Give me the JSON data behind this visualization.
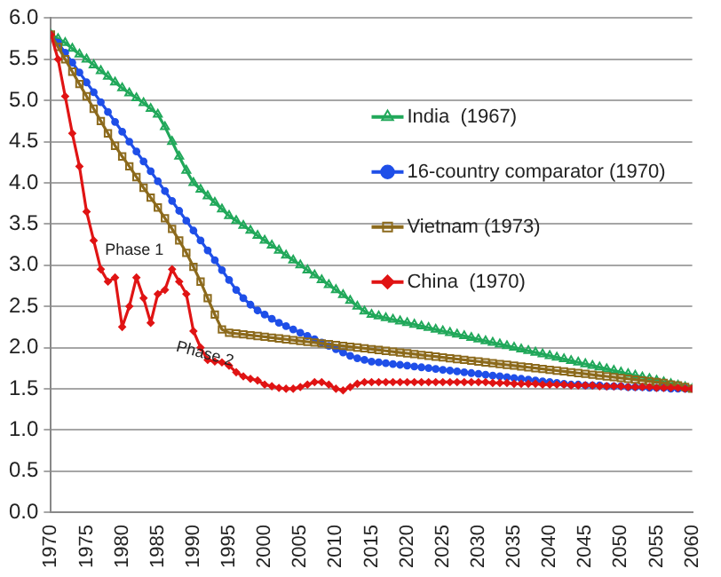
{
  "chart_data": {
    "type": "line",
    "x": [
      1970,
      1971,
      1972,
      1973,
      1974,
      1975,
      1976,
      1977,
      1978,
      1979,
      1980,
      1981,
      1982,
      1983,
      1984,
      1985,
      1986,
      1987,
      1988,
      1989,
      1990,
      1991,
      1992,
      1993,
      1994,
      1995,
      1996,
      1997,
      1998,
      1999,
      2000,
      2001,
      2002,
      2003,
      2004,
      2005,
      2006,
      2007,
      2008,
      2009,
      2010,
      2011,
      2012,
      2013,
      2014,
      2015,
      2016,
      2017,
      2018,
      2019,
      2020,
      2021,
      2022,
      2023,
      2024,
      2025,
      2026,
      2027,
      2028,
      2029,
      2030,
      2031,
      2032,
      2033,
      2034,
      2035,
      2036,
      2037,
      2038,
      2039,
      2040,
      2041,
      2042,
      2043,
      2044,
      2045,
      2046,
      2047,
      2048,
      2049,
      2050,
      2051,
      2052,
      2053,
      2054,
      2055,
      2056,
      2057,
      2058,
      2059,
      2060
    ],
    "series": [
      {
        "name": "India  (1967)",
        "color": "#21a85a",
        "marker": "triangle",
        "values": [
          5.8,
          5.75,
          5.7,
          5.63,
          5.56,
          5.5,
          5.43,
          5.36,
          5.29,
          5.22,
          5.15,
          5.09,
          5.03,
          4.97,
          4.9,
          4.83,
          4.68,
          4.5,
          4.32,
          4.15,
          4.0,
          3.92,
          3.84,
          3.76,
          3.68,
          3.6,
          3.54,
          3.48,
          3.42,
          3.36,
          3.3,
          3.24,
          3.18,
          3.12,
          3.06,
          3.0,
          2.94,
          2.88,
          2.82,
          2.76,
          2.7,
          2.64,
          2.57,
          2.5,
          2.44,
          2.4,
          2.38,
          2.36,
          2.34,
          2.32,
          2.3,
          2.28,
          2.26,
          2.24,
          2.22,
          2.2,
          2.18,
          2.16,
          2.14,
          2.12,
          2.1,
          2.08,
          2.06,
          2.04,
          2.02,
          2.0,
          1.98,
          1.96,
          1.94,
          1.92,
          1.9,
          1.88,
          1.86,
          1.84,
          1.82,
          1.8,
          1.78,
          1.76,
          1.74,
          1.72,
          1.7,
          1.68,
          1.66,
          1.64,
          1.62,
          1.6,
          1.58,
          1.56,
          1.54,
          1.52,
          1.5
        ]
      },
      {
        "name": "16-country comparator (1970)",
        "color": "#1f4fe8",
        "marker": "circle",
        "values": [
          5.8,
          5.7,
          5.58,
          5.46,
          5.34,
          5.22,
          5.1,
          4.98,
          4.86,
          4.74,
          4.62,
          4.5,
          4.38,
          4.26,
          4.14,
          4.02,
          3.9,
          3.78,
          3.66,
          3.54,
          3.42,
          3.3,
          3.18,
          3.06,
          2.94,
          2.82,
          2.7,
          2.6,
          2.52,
          2.45,
          2.4,
          2.35,
          2.3,
          2.26,
          2.22,
          2.18,
          2.14,
          2.1,
          2.06,
          2.02,
          1.98,
          1.94,
          1.9,
          1.87,
          1.85,
          1.83,
          1.82,
          1.81,
          1.8,
          1.79,
          1.78,
          1.77,
          1.76,
          1.75,
          1.74,
          1.73,
          1.72,
          1.71,
          1.7,
          1.69,
          1.68,
          1.67,
          1.66,
          1.65,
          1.64,
          1.63,
          1.62,
          1.61,
          1.6,
          1.59,
          1.58,
          1.57,
          1.56,
          1.55,
          1.55,
          1.54,
          1.54,
          1.54,
          1.53,
          1.53,
          1.53,
          1.52,
          1.52,
          1.52,
          1.51,
          1.51,
          1.51,
          1.5,
          1.5,
          1.5,
          1.5
        ]
      },
      {
        "name": "Vietnam (1973)",
        "color": "#8c6a1c",
        "marker": "square",
        "values": [
          5.8,
          5.65,
          5.5,
          5.35,
          5.2,
          5.05,
          4.9,
          4.75,
          4.6,
          4.45,
          4.32,
          4.2,
          4.07,
          3.94,
          3.82,
          3.7,
          3.57,
          3.44,
          3.3,
          3.15,
          2.98,
          2.8,
          2.6,
          2.4,
          2.22,
          2.18,
          2.17,
          2.16,
          2.15,
          2.14,
          2.13,
          2.12,
          2.11,
          2.1,
          2.09,
          2.08,
          2.07,
          2.06,
          2.05,
          2.04,
          2.03,
          2.02,
          2.01,
          2.0,
          1.99,
          1.98,
          1.97,
          1.96,
          1.95,
          1.94,
          1.93,
          1.92,
          1.91,
          1.9,
          1.89,
          1.88,
          1.87,
          1.86,
          1.85,
          1.84,
          1.83,
          1.82,
          1.81,
          1.8,
          1.79,
          1.78,
          1.77,
          1.76,
          1.75,
          1.74,
          1.73,
          1.72,
          1.71,
          1.7,
          1.69,
          1.68,
          1.67,
          1.66,
          1.65,
          1.64,
          1.63,
          1.62,
          1.61,
          1.6,
          1.59,
          1.58,
          1.57,
          1.55,
          1.54,
          1.52,
          1.5
        ]
      },
      {
        "name": "China  (1970)",
        "color": "#e01414",
        "marker": "diamond",
        "values": [
          5.8,
          5.5,
          5.05,
          4.6,
          4.2,
          3.65,
          3.3,
          2.95,
          2.8,
          2.85,
          2.25,
          2.5,
          2.85,
          2.6,
          2.3,
          2.65,
          2.7,
          2.95,
          2.8,
          2.65,
          2.2,
          2.0,
          1.85,
          1.83,
          1.82,
          1.78,
          1.7,
          1.65,
          1.62,
          1.6,
          1.55,
          1.53,
          1.51,
          1.5,
          1.5,
          1.52,
          1.55,
          1.58,
          1.58,
          1.55,
          1.5,
          1.48,
          1.52,
          1.56,
          1.58,
          1.58,
          1.58,
          1.58,
          1.58,
          1.58,
          1.58,
          1.58,
          1.58,
          1.58,
          1.58,
          1.58,
          1.58,
          1.58,
          1.58,
          1.58,
          1.58,
          1.58,
          1.57,
          1.57,
          1.57,
          1.56,
          1.56,
          1.56,
          1.56,
          1.55,
          1.55,
          1.55,
          1.55,
          1.54,
          1.54,
          1.54,
          1.54,
          1.53,
          1.53,
          1.53,
          1.53,
          1.52,
          1.52,
          1.52,
          1.52,
          1.51,
          1.51,
          1.51,
          1.51,
          1.5,
          1.5
        ]
      }
    ],
    "xlim": [
      1970,
      2060
    ],
    "xticks": [
      1970,
      1975,
      1980,
      1985,
      1990,
      1995,
      2000,
      2005,
      2010,
      2015,
      2020,
      2025,
      2030,
      2035,
      2040,
      2045,
      2050,
      2055,
      2060
    ],
    "ylim": [
      0,
      6
    ],
    "yticks": [
      {
        "value": 0,
        "label": "0.0"
      },
      {
        "value": 0.5,
        "label": "0.5"
      },
      {
        "value": 1,
        "label": "1.0"
      },
      {
        "value": 1.5,
        "label": "1.5"
      },
      {
        "value": 2,
        "label": "2.0"
      },
      {
        "value": 2.5,
        "label": "2.5"
      },
      {
        "value": 3,
        "label": "3.0"
      },
      {
        "value": 3.5,
        "label": "3.5"
      },
      {
        "value": 4,
        "label": "4.0"
      },
      {
        "value": 4.5,
        "label": "4.5"
      },
      {
        "value": 5,
        "label": "5.0"
      },
      {
        "value": 5.5,
        "label": "5.5"
      },
      {
        "value": 6,
        "label": "6.0"
      }
    ],
    "grid": "y",
    "legend": "right",
    "line_style": "solid",
    "annotations": [
      "Phase 1",
      "Phase 2"
    ]
  }
}
